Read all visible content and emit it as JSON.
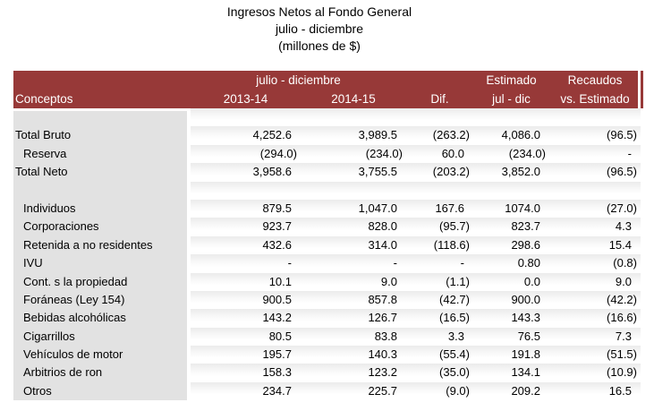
{
  "title": {
    "line1": "Ingresos Netos al Fondo General",
    "line2": "julio - diciembre",
    "line3": "(millones de $)"
  },
  "colors": {
    "header_bg": "#973938",
    "header_text": "#ffffff",
    "concept_column_bg": "#e2e2e2",
    "row_stripe": "#ebebeb"
  },
  "table": {
    "header": {
      "conceptos_label": "Conceptos",
      "group_label": "julio - diciembre",
      "estimado_label": "Estimado",
      "recaudos_label": "Recaudos",
      "col_2013_14": "2013-14",
      "col_2014_15": "2014-15",
      "col_dif": "Dif.",
      "col_jul_dic": "jul - dic",
      "col_vs_estimado": "vs. Estimado"
    },
    "rows": [
      {
        "label": "",
        "indent": false,
        "values": [
          "",
          "",
          "",
          "",
          ""
        ]
      },
      {
        "label": "Total Bruto",
        "indent": false,
        "values": [
          "4,252.6",
          "3,989.5",
          "(263.2)",
          "4,086.0",
          "(96.5)"
        ]
      },
      {
        "label": "Reserva",
        "indent": true,
        "values": [
          "(294.0)",
          "(234.0)",
          "60.0",
          "(234.0)",
          "-"
        ]
      },
      {
        "label": "Total Neto",
        "indent": false,
        "values": [
          "3,958.6",
          "3,755.5",
          "(203.2)",
          "3,852.0",
          "(96.5)"
        ]
      },
      {
        "label": "",
        "indent": false,
        "values": [
          "",
          "",
          "",
          "",
          ""
        ]
      },
      {
        "label": "Individuos",
        "indent": true,
        "values": [
          "879.5",
          "1,047.0",
          "167.6",
          "1074.0",
          "(27.0)"
        ]
      },
      {
        "label": "Corporaciones",
        "indent": true,
        "values": [
          "923.7",
          "828.0",
          "(95.7)",
          "823.7",
          "4.3"
        ]
      },
      {
        "label": "Retenida a no residentes",
        "indent": true,
        "values": [
          "432.6",
          "314.0",
          "(118.6)",
          "298.6",
          "15.4"
        ]
      },
      {
        "label": "IVU",
        "indent": true,
        "values": [
          "-",
          "-",
          "-",
          "0.80",
          "(0.8)"
        ]
      },
      {
        "label": "Cont. s la propiedad",
        "indent": true,
        "values": [
          "10.1",
          "9.0",
          "(1.1)",
          "0.0",
          "9.0"
        ]
      },
      {
        "label": "Foráneas (Ley 154)",
        "indent": true,
        "values": [
          "900.5",
          "857.8",
          "(42.7)",
          "900.0",
          "(42.2)"
        ]
      },
      {
        "label": "Bebidas alcohólicas",
        "indent": true,
        "values": [
          "143.2",
          "126.7",
          "(16.5)",
          "143.3",
          "(16.6)"
        ]
      },
      {
        "label": "Cigarrillos",
        "indent": true,
        "values": [
          "80.5",
          "83.8",
          "3.3",
          "76.5",
          "7.3"
        ]
      },
      {
        "label": "Vehículos de motor",
        "indent": true,
        "values": [
          "195.7",
          "140.3",
          "(55.4)",
          "191.8",
          "(51.5)"
        ]
      },
      {
        "label": "Arbitrios de ron",
        "indent": true,
        "values": [
          "158.3",
          "123.2",
          "(35.0)",
          "134.1",
          "(10.9)"
        ]
      },
      {
        "label": "Otros",
        "indent": true,
        "values": [
          "234.7",
          "225.7",
          "(9.0)",
          "209.2",
          "16.5"
        ]
      }
    ]
  }
}
